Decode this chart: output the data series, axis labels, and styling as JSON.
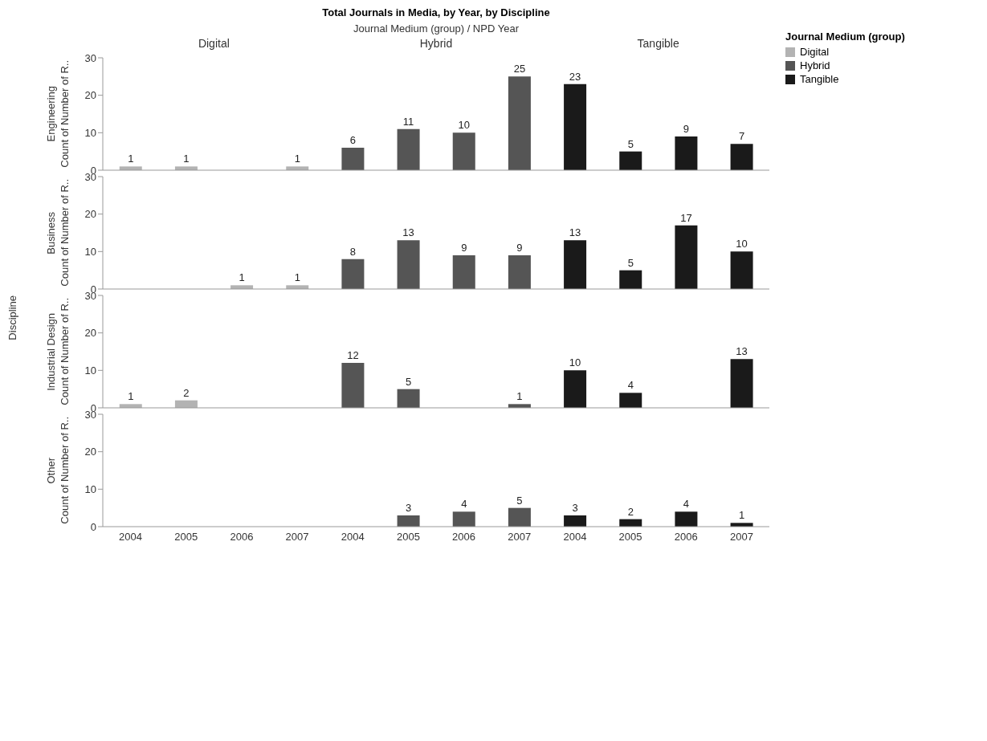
{
  "chart_data": [
    {
      "type": "bar",
      "title": "Total Journals in Media, by Year, by Discipline",
      "xlabel": "Journal Medium (group)  /  NPD Year",
      "ylabel": "Count of Number of R..",
      "legend": "right",
      "legend_title": "Journal Medium (group)",
      "annotations": [
        "Engineering",
        "Digital",
        "Hybrid",
        "Tangible",
        "Discipline"
      ],
      "tick_labels": "y",
      "data_labels": true,
      "ylim": [
        0,
        30
      ],
      "yticks": [
        0,
        10,
        20,
        30
      ],
      "categories": [
        "2004",
        "2005",
        "2006",
        "2007",
        "2004",
        "2005",
        "2006",
        "2007",
        "2004",
        "2005",
        "2006",
        "2007"
      ],
      "series": [
        {
          "name": "Digital",
          "color": "#b3b3b3",
          "values": [
            1,
            1,
            null,
            1,
            null,
            null,
            null,
            null,
            null,
            null,
            null,
            null
          ]
        },
        {
          "name": "Hybrid",
          "color": "#555555",
          "values": [
            null,
            null,
            null,
            null,
            6,
            11,
            10,
            25,
            null,
            null,
            null,
            null
          ]
        },
        {
          "name": "Tangible",
          "color": "#1a1a1a",
          "values": [
            null,
            null,
            null,
            null,
            null,
            null,
            null,
            null,
            23,
            5,
            9,
            7
          ]
        }
      ]
    },
    {
      "type": "bar",
      "ylabel": "Count of Number of R..",
      "annotations": [
        "Business"
      ],
      "tick_labels": "y",
      "data_labels": true,
      "ylim": [
        0,
        30
      ],
      "yticks": [
        0,
        10,
        20,
        30
      ],
      "categories": [
        "2004",
        "2005",
        "2006",
        "2007",
        "2004",
        "2005",
        "2006",
        "2007",
        "2004",
        "2005",
        "2006",
        "2007"
      ],
      "series": [
        {
          "color": "#b3b3b3",
          "values": [
            null,
            null,
            1,
            1,
            null,
            null,
            null,
            null,
            null,
            null,
            null,
            null
          ]
        },
        {
          "color": "#555555",
          "values": [
            null,
            null,
            null,
            null,
            8,
            13,
            9,
            9,
            null,
            null,
            null,
            null
          ]
        },
        {
          "color": "#1a1a1a",
          "values": [
            null,
            null,
            null,
            null,
            null,
            null,
            null,
            null,
            13,
            5,
            17,
            10
          ]
        }
      ]
    },
    {
      "type": "bar",
      "ylabel": "Count of Number of R..",
      "annotations": [
        "Industrial Design"
      ],
      "tick_labels": "y",
      "data_labels": true,
      "ylim": [
        0,
        30
      ],
      "yticks": [
        0,
        10,
        20,
        30
      ],
      "categories": [
        "2004",
        "2005",
        "2006",
        "2007",
        "2004",
        "2005",
        "2006",
        "2007",
        "2004",
        "2005",
        "2006",
        "2007"
      ],
      "series": [
        {
          "color": "#b3b3b3",
          "values": [
            1,
            2,
            null,
            null,
            null,
            null,
            null,
            null,
            null,
            null,
            null,
            null
          ]
        },
        {
          "color": "#555555",
          "values": [
            null,
            null,
            null,
            null,
            12,
            5,
            null,
            1,
            null,
            null,
            null,
            null
          ]
        },
        {
          "color": "#1a1a1a",
          "values": [
            null,
            null,
            null,
            null,
            null,
            null,
            null,
            null,
            10,
            4,
            null,
            13
          ]
        }
      ]
    },
    {
      "type": "bar",
      "ylabel": "Count of Number of R..",
      "annotations": [
        "Other"
      ],
      "data_labels": true,
      "ylim": [
        0,
        30
      ],
      "yticks": [
        0,
        10,
        20,
        30
      ],
      "categories": [
        "2004",
        "2005",
        "2006",
        "2007",
        "2004",
        "2005",
        "2006",
        "2007",
        "2004",
        "2005",
        "2006",
        "2007"
      ],
      "series": [
        {
          "color": "#b3b3b3",
          "values": [
            null,
            null,
            null,
            null,
            null,
            null,
            null,
            null,
            null,
            null,
            null,
            null
          ]
        },
        {
          "color": "#555555",
          "values": [
            null,
            null,
            null,
            null,
            null,
            3,
            4,
            5,
            null,
            null,
            null,
            null
          ]
        },
        {
          "color": "#1a1a1a",
          "values": [
            null,
            null,
            null,
            null,
            null,
            null,
            null,
            null,
            3,
            2,
            4,
            1
          ]
        }
      ]
    }
  ]
}
